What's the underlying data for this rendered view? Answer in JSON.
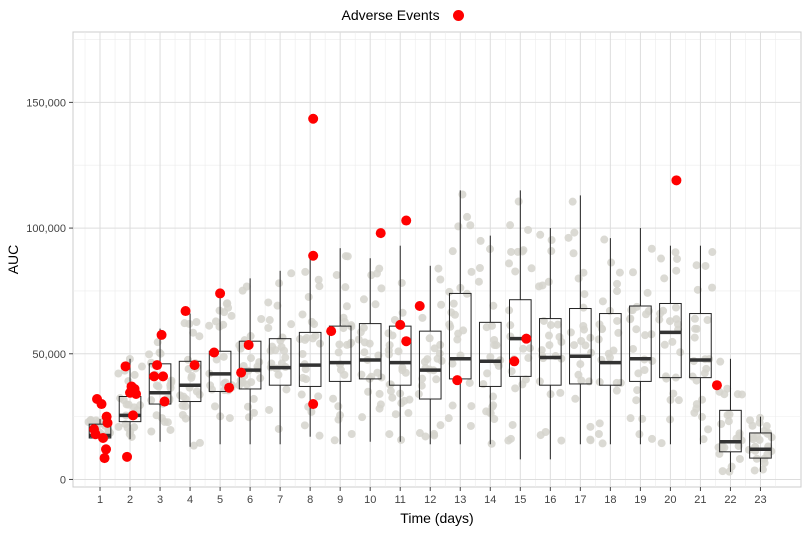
{
  "chart_data": {
    "type": "box",
    "xlabel": "Time (days)",
    "ylabel": "AUC",
    "ylim": [
      -3000,
      178000
    ],
    "x_ticks": [
      "1",
      "2",
      "3",
      "4",
      "5",
      "6",
      "7",
      "8",
      "9",
      "10",
      "11",
      "12",
      "13",
      "14",
      "15",
      "16",
      "17",
      "18",
      "19",
      "20",
      "21",
      "22",
      "23"
    ],
    "y_ticks": [
      0,
      50000,
      100000,
      150000
    ],
    "y_tick_labels": [
      "0",
      "50,000",
      "100,000",
      "150,000"
    ],
    "legend": {
      "label": "Adverse Events",
      "position": "top",
      "color": "#ff0000"
    },
    "grid": true,
    "colors": {
      "points": "#d5d3cc",
      "events": "#ff0000",
      "median": "#333333",
      "box": "#222222"
    },
    "boxes": [
      {
        "day": 1,
        "q1": 16500,
        "median": 17500,
        "q3": 22000,
        "whisker_low": 16500,
        "whisker_high": 24000
      },
      {
        "day": 2,
        "q1": 23000,
        "median": 25500,
        "q3": 33000,
        "whisker_low": 16000,
        "whisker_high": 48000
      },
      {
        "day": 3,
        "q1": 30000,
        "median": 34500,
        "q3": 46000,
        "whisker_low": 15000,
        "whisker_high": 60000
      },
      {
        "day": 4,
        "q1": 31000,
        "median": 37500,
        "q3": 47000,
        "whisker_low": 13000,
        "whisker_high": 66000
      },
      {
        "day": 5,
        "q1": 35000,
        "median": 42000,
        "q3": 51000,
        "whisker_low": 14000,
        "whisker_high": 75000
      },
      {
        "day": 6,
        "q1": 36000,
        "median": 43500,
        "q3": 55000,
        "whisker_low": 14000,
        "whisker_high": 80000
      },
      {
        "day": 7,
        "q1": 37500,
        "median": 44500,
        "q3": 56000,
        "whisker_low": 14000,
        "whisker_high": 83000
      },
      {
        "day": 8,
        "q1": 37000,
        "median": 45500,
        "q3": 58500,
        "whisker_low": 17000,
        "whisker_high": 90000
      },
      {
        "day": 9,
        "q1": 39000,
        "median": 46500,
        "q3": 61000,
        "whisker_low": 14000,
        "whisker_high": 92000
      },
      {
        "day": 10,
        "q1": 40000,
        "median": 47500,
        "q3": 62000,
        "whisker_low": 15000,
        "whisker_high": 88000
      },
      {
        "day": 11,
        "q1": 37500,
        "median": 46500,
        "q3": 61000,
        "whisker_low": 15000,
        "whisker_high": 93000
      },
      {
        "day": 12,
        "q1": 32000,
        "median": 43500,
        "q3": 59000,
        "whisker_low": 14000,
        "whisker_high": 85000
      },
      {
        "day": 13,
        "q1": 40000,
        "median": 48000,
        "q3": 74000,
        "whisker_low": 14000,
        "whisker_high": 115000
      },
      {
        "day": 14,
        "q1": 37000,
        "median": 47000,
        "q3": 62500,
        "whisker_low": 14000,
        "whisker_high": 97000
      },
      {
        "day": 15,
        "q1": 41000,
        "median": 56000,
        "q3": 71500,
        "whisker_low": 8000,
        "whisker_high": 115000
      },
      {
        "day": 16,
        "q1": 37500,
        "median": 48500,
        "q3": 64000,
        "whisker_low": 8000,
        "whisker_high": 100000
      },
      {
        "day": 17,
        "q1": 38000,
        "median": 49000,
        "q3": 68000,
        "whisker_low": 14000,
        "whisker_high": 113000
      },
      {
        "day": 18,
        "q1": 37500,
        "median": 46500,
        "q3": 66000,
        "whisker_low": 14000,
        "whisker_high": 96000
      },
      {
        "day": 19,
        "q1": 39000,
        "median": 48000,
        "q3": 69000,
        "whisker_low": 14000,
        "whisker_high": 100000
      },
      {
        "day": 20,
        "q1": 40500,
        "median": 58500,
        "q3": 70000,
        "whisker_low": 14000,
        "whisker_high": 93000
      },
      {
        "day": 21,
        "q1": 40500,
        "median": 47500,
        "q3": 66000,
        "whisker_low": 14000,
        "whisker_high": 93000
      },
      {
        "day": 22,
        "q1": 11000,
        "median": 15000,
        "q3": 27500,
        "whisker_low": 3000,
        "whisker_high": 48000
      },
      {
        "day": 23,
        "q1": 8500,
        "median": 12000,
        "q3": 18500,
        "whisker_low": 3000,
        "whisker_high": 25000
      }
    ],
    "adverse_events": [
      {
        "x": 0.8,
        "y": 20000
      },
      {
        "x": 0.85,
        "y": 18000
      },
      {
        "x": 0.9,
        "y": 32000
      },
      {
        "x": 1.05,
        "y": 30000
      },
      {
        "x": 1.1,
        "y": 16500
      },
      {
        "x": 1.15,
        "y": 8500
      },
      {
        "x": 1.2,
        "y": 12000
      },
      {
        "x": 1.22,
        "y": 25000
      },
      {
        "x": 1.25,
        "y": 22500
      },
      {
        "x": 1.85,
        "y": 45000
      },
      {
        "x": 1.9,
        "y": 9000
      },
      {
        "x": 2.0,
        "y": 34500
      },
      {
        "x": 2.05,
        "y": 37000
      },
      {
        "x": 2.1,
        "y": 25500
      },
      {
        "x": 2.15,
        "y": 36000
      },
      {
        "x": 2.2,
        "y": 34000
      },
      {
        "x": 2.8,
        "y": 41000
      },
      {
        "x": 2.9,
        "y": 45500
      },
      {
        "x": 3.05,
        "y": 57500
      },
      {
        "x": 3.1,
        "y": 41000
      },
      {
        "x": 3.15,
        "y": 31000
      },
      {
        "x": 3.85,
        "y": 67000
      },
      {
        "x": 4.15,
        "y": 45500
      },
      {
        "x": 4.8,
        "y": 50500
      },
      {
        "x": 5.0,
        "y": 74000
      },
      {
        "x": 5.3,
        "y": 36500
      },
      {
        "x": 5.7,
        "y": 42500
      },
      {
        "x": 5.95,
        "y": 53500
      },
      {
        "x": 8.1,
        "y": 143500
      },
      {
        "x": 8.1,
        "y": 89000
      },
      {
        "x": 8.1,
        "y": 30000
      },
      {
        "x": 8.7,
        "y": 59000
      },
      {
        "x": 10.35,
        "y": 98000
      },
      {
        "x": 11.0,
        "y": 61500
      },
      {
        "x": 11.2,
        "y": 103000
      },
      {
        "x": 11.2,
        "y": 55000
      },
      {
        "x": 11.65,
        "y": 69000
      },
      {
        "x": 12.9,
        "y": 39500
      },
      {
        "x": 14.8,
        "y": 47000
      },
      {
        "x": 15.2,
        "y": 56000
      },
      {
        "x": 20.2,
        "y": 119000
      },
      {
        "x": 21.55,
        "y": 37500
      }
    ]
  }
}
